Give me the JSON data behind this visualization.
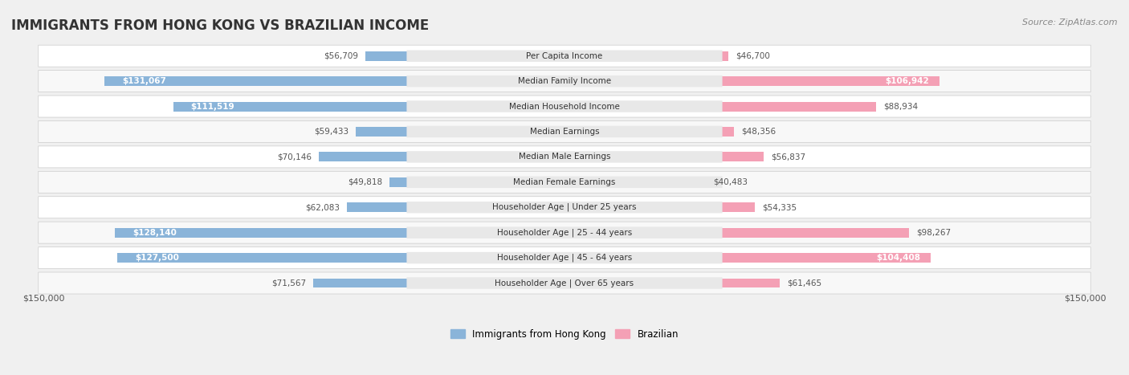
{
  "title": "IMMIGRANTS FROM HONG KONG VS BRAZILIAN INCOME",
  "source": "Source: ZipAtlas.com",
  "categories": [
    "Per Capita Income",
    "Median Family Income",
    "Median Household Income",
    "Median Earnings",
    "Median Male Earnings",
    "Median Female Earnings",
    "Householder Age | Under 25 years",
    "Householder Age | 25 - 44 years",
    "Householder Age | 45 - 64 years",
    "Householder Age | Over 65 years"
  ],
  "hk_values": [
    56709,
    131067,
    111519,
    59433,
    70146,
    49818,
    62083,
    128140,
    127500,
    71567
  ],
  "br_values": [
    46700,
    106942,
    88934,
    48356,
    56837,
    40483,
    54335,
    98267,
    104408,
    61465
  ],
  "hk_labels": [
    "$56,709",
    "$131,067",
    "$111,519",
    "$59,433",
    "$70,146",
    "$49,818",
    "$62,083",
    "$128,140",
    "$127,500",
    "$71,567"
  ],
  "br_labels": [
    "$46,700",
    "$106,942",
    "$88,934",
    "$48,356",
    "$56,837",
    "$40,483",
    "$54,335",
    "$98,267",
    "$104,408",
    "$61,465"
  ],
  "hk_color": "#8ab4d9",
  "hk_color_dark": "#5b8fbf",
  "br_color": "#f4a0b5",
  "br_color_dark": "#e05a80",
  "max_val": 150000,
  "bg_color": "#f0f0f0",
  "row_bg": "#ffffff",
  "row_alt_bg": "#f8f8f8",
  "label_bg": "#e8e8e8",
  "xlabel_left": "$150,000",
  "xlabel_right": "$150,000",
  "legend_hk": "Immigrants from Hong Kong",
  "legend_br": "Brazilian"
}
